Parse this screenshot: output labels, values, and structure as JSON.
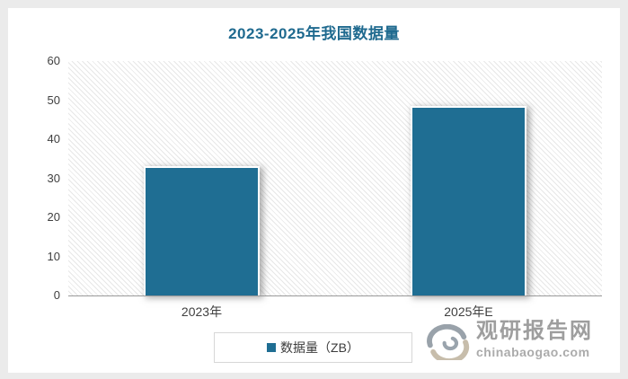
{
  "title": "2023-2025年我国数据量",
  "colors": {
    "frame_bg": "#ebebeb",
    "canvas_bg": "#ffffff",
    "accent_teal": "#1f6e93",
    "title_color": "#1f6a8f",
    "axis_line": "#9a9a9a",
    "tick_text": "#3f3f3f",
    "hatch_line": "#e7e7e7",
    "legend_border": "#d7d7d7",
    "watermark_gray": "#9e9e9e"
  },
  "chart_data": {
    "type": "bar",
    "title": "2023-2025年我国数据量",
    "categories": [
      "2023年",
      "2025年E"
    ],
    "series": [
      {
        "name": "数据量（ZB）",
        "color": "#1f6e93",
        "values": [
          33,
          48.5
        ]
      }
    ],
    "xlabel": "",
    "ylabel": "",
    "ylim": [
      0,
      60
    ],
    "yticks": [
      0,
      10,
      20,
      30,
      40,
      50,
      60
    ],
    "grid": false,
    "legend_position": "bottom",
    "plot_area_pattern": "light-diagonal-hatch"
  },
  "legend": {
    "label": "数据量（ZB）",
    "swatch_color": "#1f6e93"
  },
  "watermark": {
    "brand": "观研报告网",
    "site": "chinabaogao.com"
  }
}
